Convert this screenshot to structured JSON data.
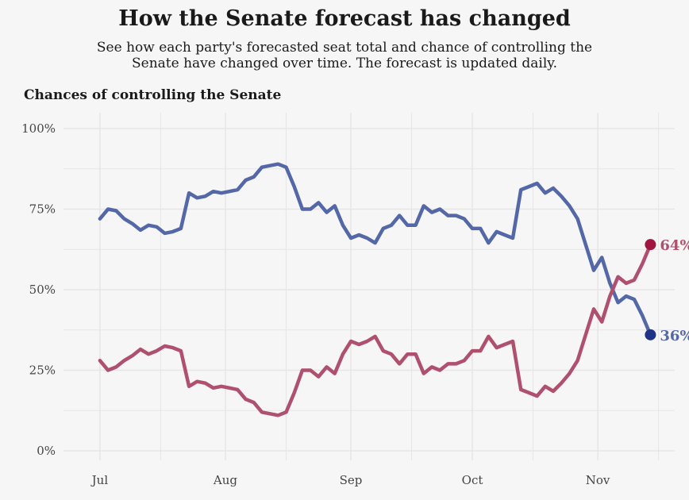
{
  "header": {
    "title": "How the Senate forecast has changed",
    "subtitle": "See how each party's forecasted seat total and chance of controlling the Senate have changed over time. The forecast is updated daily.",
    "section_title": "Chances of controlling the Senate"
  },
  "colors": {
    "background": "#f6f6f6",
    "grid": "#e6e6e6",
    "blue": "#5468a8",
    "blue_dot": "#1f3388",
    "red": "#b0506f",
    "red_dot": "#a0163f"
  },
  "chart_data": {
    "type": "line",
    "title": "Chances of controlling the Senate",
    "xlabel": "",
    "ylabel": "",
    "ylim": [
      0,
      100
    ],
    "xlim": [
      "2020-06-22",
      "2020-11-20"
    ],
    "x_ticks": [
      {
        "date": "2020-07-01",
        "label": "Jul"
      },
      {
        "date": "2020-08-01",
        "label": "Aug"
      },
      {
        "date": "2020-09-01",
        "label": "Sep"
      },
      {
        "date": "2020-10-01",
        "label": "Oct"
      },
      {
        "date": "2020-11-01",
        "label": "Nov"
      }
    ],
    "y_ticks": [
      {
        "value": 0,
        "label": "0%"
      },
      {
        "value": 25,
        "label": "25%"
      },
      {
        "value": 50,
        "label": "50%"
      },
      {
        "value": 75,
        "label": "75%"
      },
      {
        "value": 100,
        "label": "100%"
      }
    ],
    "grid": true,
    "series": [
      {
        "color": "#5468a8",
        "end_label": "36%",
        "points": [
          [
            "2020-07-01",
            72
          ],
          [
            "2020-07-03",
            75
          ],
          [
            "2020-07-05",
            74.5
          ],
          [
            "2020-07-07",
            72
          ],
          [
            "2020-07-09",
            70.5
          ],
          [
            "2020-07-11",
            68.5
          ],
          [
            "2020-07-13",
            70
          ],
          [
            "2020-07-15",
            69.5
          ],
          [
            "2020-07-17",
            67.5
          ],
          [
            "2020-07-19",
            68
          ],
          [
            "2020-07-21",
            69
          ],
          [
            "2020-07-23",
            80
          ],
          [
            "2020-07-25",
            78.5
          ],
          [
            "2020-07-27",
            79
          ],
          [
            "2020-07-29",
            80.5
          ],
          [
            "2020-07-31",
            80
          ],
          [
            "2020-08-02",
            80.5
          ],
          [
            "2020-08-04",
            81
          ],
          [
            "2020-08-06",
            84
          ],
          [
            "2020-08-08",
            85
          ],
          [
            "2020-08-10",
            88
          ],
          [
            "2020-08-12",
            88.5
          ],
          [
            "2020-08-14",
            89
          ],
          [
            "2020-08-16",
            88
          ],
          [
            "2020-08-18",
            82
          ],
          [
            "2020-08-20",
            75
          ],
          [
            "2020-08-22",
            75
          ],
          [
            "2020-08-24",
            77
          ],
          [
            "2020-08-26",
            74
          ],
          [
            "2020-08-28",
            76
          ],
          [
            "2020-08-30",
            70
          ],
          [
            "2020-09-01",
            66
          ],
          [
            "2020-09-03",
            67
          ],
          [
            "2020-09-05",
            66
          ],
          [
            "2020-09-07",
            64.5
          ],
          [
            "2020-09-09",
            69
          ],
          [
            "2020-09-11",
            70
          ],
          [
            "2020-09-13",
            73
          ],
          [
            "2020-09-15",
            70
          ],
          [
            "2020-09-17",
            70
          ],
          [
            "2020-09-19",
            76
          ],
          [
            "2020-09-21",
            74
          ],
          [
            "2020-09-23",
            75
          ],
          [
            "2020-09-25",
            73
          ],
          [
            "2020-09-27",
            73
          ],
          [
            "2020-09-29",
            72
          ],
          [
            "2020-10-01",
            69
          ],
          [
            "2020-10-03",
            69
          ],
          [
            "2020-10-05",
            64.5
          ],
          [
            "2020-10-07",
            68
          ],
          [
            "2020-10-09",
            67
          ],
          [
            "2020-10-11",
            66
          ],
          [
            "2020-10-13",
            81
          ],
          [
            "2020-10-15",
            82
          ],
          [
            "2020-10-17",
            83
          ],
          [
            "2020-10-19",
            80
          ],
          [
            "2020-10-21",
            81.5
          ],
          [
            "2020-10-23",
            79
          ],
          [
            "2020-10-25",
            76
          ],
          [
            "2020-10-27",
            72
          ],
          [
            "2020-10-29",
            64
          ],
          [
            "2020-10-31",
            56
          ],
          [
            "2020-11-02",
            60
          ],
          [
            "2020-11-04",
            52
          ],
          [
            "2020-11-06",
            46
          ],
          [
            "2020-11-08",
            48
          ],
          [
            "2020-11-10",
            47
          ],
          [
            "2020-11-12",
            42
          ],
          [
            "2020-11-14",
            36
          ]
        ]
      },
      {
        "color": "#b0506f",
        "end_label": "64%",
        "points": [
          [
            "2020-07-01",
            28
          ],
          [
            "2020-07-03",
            25
          ],
          [
            "2020-07-05",
            26
          ],
          [
            "2020-07-07",
            28
          ],
          [
            "2020-07-09",
            29.5
          ],
          [
            "2020-07-11",
            31.5
          ],
          [
            "2020-07-13",
            30
          ],
          [
            "2020-07-15",
            31
          ],
          [
            "2020-07-17",
            32.5
          ],
          [
            "2020-07-19",
            32
          ],
          [
            "2020-07-21",
            31
          ],
          [
            "2020-07-23",
            20
          ],
          [
            "2020-07-25",
            21.5
          ],
          [
            "2020-07-27",
            21
          ],
          [
            "2020-07-29",
            19.5
          ],
          [
            "2020-07-31",
            20
          ],
          [
            "2020-08-02",
            19.5
          ],
          [
            "2020-08-04",
            19
          ],
          [
            "2020-08-06",
            16
          ],
          [
            "2020-08-08",
            15
          ],
          [
            "2020-08-10",
            12
          ],
          [
            "2020-08-12",
            11.5
          ],
          [
            "2020-08-14",
            11
          ],
          [
            "2020-08-16",
            12
          ],
          [
            "2020-08-18",
            18
          ],
          [
            "2020-08-20",
            25
          ],
          [
            "2020-08-22",
            25
          ],
          [
            "2020-08-24",
            23
          ],
          [
            "2020-08-26",
            26
          ],
          [
            "2020-08-28",
            24
          ],
          [
            "2020-08-30",
            30
          ],
          [
            "2020-09-01",
            34
          ],
          [
            "2020-09-03",
            33
          ],
          [
            "2020-09-05",
            34
          ],
          [
            "2020-09-07",
            35.5
          ],
          [
            "2020-09-09",
            31
          ],
          [
            "2020-09-11",
            30
          ],
          [
            "2020-09-13",
            27
          ],
          [
            "2020-09-15",
            30
          ],
          [
            "2020-09-17",
            30
          ],
          [
            "2020-09-19",
            24
          ],
          [
            "2020-09-21",
            26
          ],
          [
            "2020-09-23",
            25
          ],
          [
            "2020-09-25",
            27
          ],
          [
            "2020-09-27",
            27
          ],
          [
            "2020-09-29",
            28
          ],
          [
            "2020-10-01",
            31
          ],
          [
            "2020-10-03",
            31
          ],
          [
            "2020-10-05",
            35.5
          ],
          [
            "2020-10-07",
            32
          ],
          [
            "2020-10-09",
            33
          ],
          [
            "2020-10-11",
            34
          ],
          [
            "2020-10-13",
            19
          ],
          [
            "2020-10-15",
            18
          ],
          [
            "2020-10-17",
            17
          ],
          [
            "2020-10-19",
            20
          ],
          [
            "2020-10-21",
            18.5
          ],
          [
            "2020-10-23",
            21
          ],
          [
            "2020-10-25",
            24
          ],
          [
            "2020-10-27",
            28
          ],
          [
            "2020-10-29",
            36
          ],
          [
            "2020-10-31",
            44
          ],
          [
            "2020-11-02",
            40
          ],
          [
            "2020-11-04",
            48
          ],
          [
            "2020-11-06",
            54
          ],
          [
            "2020-11-08",
            52
          ],
          [
            "2020-11-10",
            53
          ],
          [
            "2020-11-12",
            58
          ],
          [
            "2020-11-14",
            64
          ]
        ]
      }
    ]
  }
}
